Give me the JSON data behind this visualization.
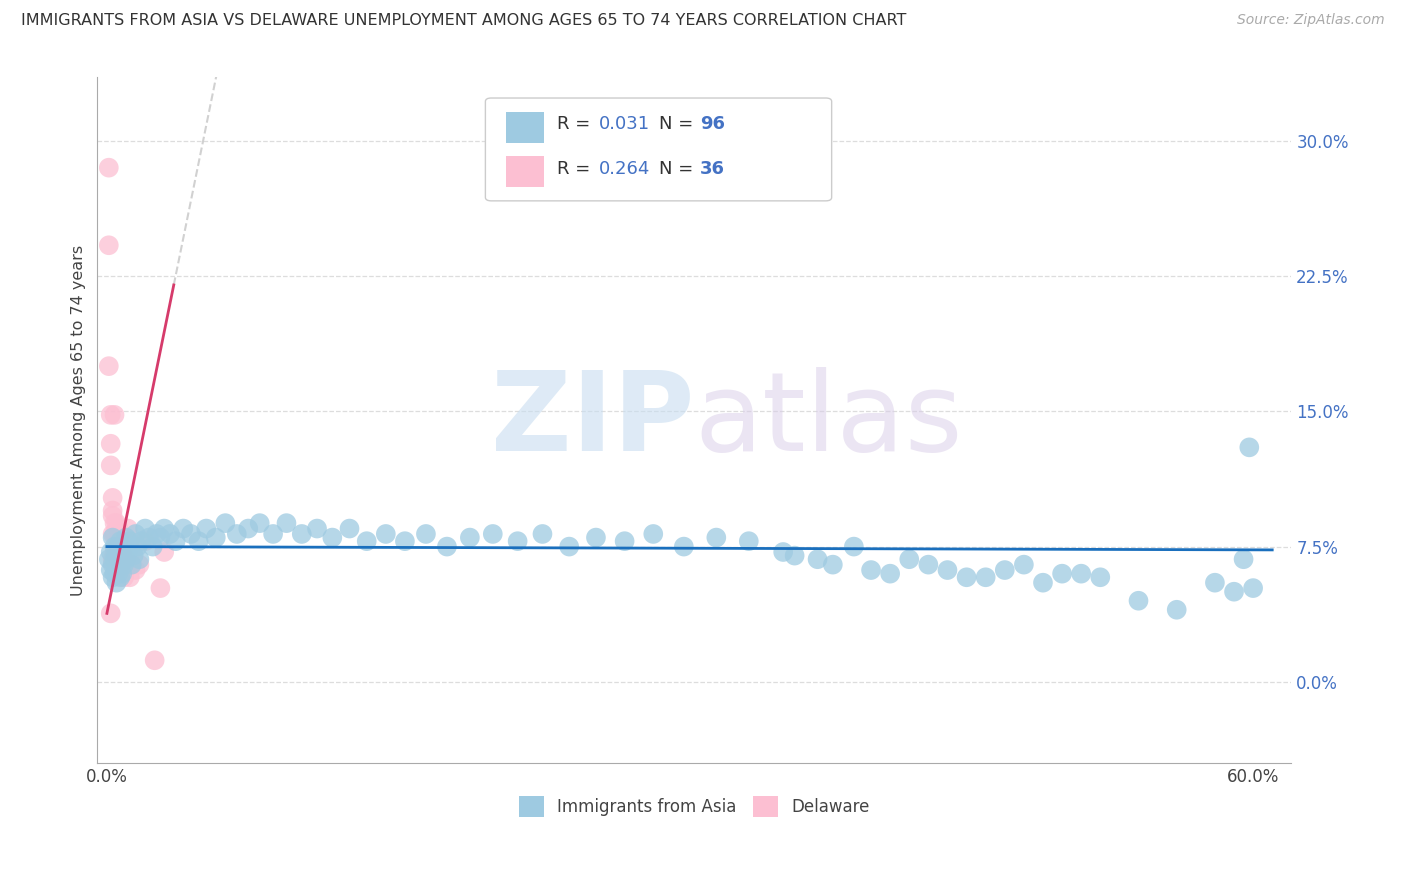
{
  "title": "IMMIGRANTS FROM ASIA VS DELAWARE UNEMPLOYMENT AMONG AGES 65 TO 74 YEARS CORRELATION CHART",
  "source": "Source: ZipAtlas.com",
  "ylabel": "Unemployment Among Ages 65 to 74 years",
  "xlabel_blue": "Immigrants from Asia",
  "xlabel_pink": "Delaware",
  "xlim": [
    -0.005,
    0.62
  ],
  "ylim": [
    -0.045,
    0.335
  ],
  "yticks": [
    0.0,
    0.075,
    0.15,
    0.225,
    0.3
  ],
  "ytick_labels": [
    "0.0%",
    "7.5%",
    "15.0%",
    "22.5%",
    "30.0%"
  ],
  "xtick_positions": [
    0.0,
    0.6
  ],
  "xtick_labels": [
    "0.0%",
    "60.0%"
  ],
  "blue_color": "#9ecae1",
  "pink_color": "#fcbfd2",
  "blue_line_color": "#1a6fbd",
  "pink_line_color": "#d63b6b",
  "trend_line_color_dashed": "#cccccc",
  "R_blue": 0.031,
  "N_blue": 96,
  "R_pink": 0.264,
  "N_pink": 36,
  "background_color": "#ffffff",
  "grid_color": "#dddddd",
  "blue_scatter_x": [
    0.001,
    0.002,
    0.002,
    0.003,
    0.003,
    0.003,
    0.004,
    0.004,
    0.004,
    0.005,
    0.005,
    0.005,
    0.006,
    0.006,
    0.006,
    0.007,
    0.007,
    0.007,
    0.008,
    0.008,
    0.009,
    0.009,
    0.01,
    0.01,
    0.011,
    0.012,
    0.013,
    0.014,
    0.015,
    0.016,
    0.017,
    0.018,
    0.02,
    0.022,
    0.024,
    0.026,
    0.028,
    0.03,
    0.033,
    0.036,
    0.04,
    0.044,
    0.048,
    0.052,
    0.057,
    0.062,
    0.068,
    0.074,
    0.08,
    0.087,
    0.094,
    0.102,
    0.11,
    0.118,
    0.127,
    0.136,
    0.146,
    0.156,
    0.167,
    0.178,
    0.19,
    0.202,
    0.215,
    0.228,
    0.242,
    0.256,
    0.271,
    0.286,
    0.302,
    0.319,
    0.336,
    0.354,
    0.372,
    0.391,
    0.41,
    0.43,
    0.45,
    0.47,
    0.49,
    0.51,
    0.36,
    0.38,
    0.4,
    0.42,
    0.44,
    0.46,
    0.48,
    0.5,
    0.52,
    0.54,
    0.56,
    0.58,
    0.595,
    0.598,
    0.6,
    0.59
  ],
  "blue_scatter_y": [
    0.068,
    0.072,
    0.062,
    0.08,
    0.065,
    0.058,
    0.075,
    0.068,
    0.06,
    0.07,
    0.062,
    0.055,
    0.075,
    0.068,
    0.06,
    0.078,
    0.065,
    0.058,
    0.072,
    0.06,
    0.075,
    0.065,
    0.08,
    0.068,
    0.072,
    0.078,
    0.065,
    0.07,
    0.082,
    0.075,
    0.068,
    0.078,
    0.085,
    0.08,
    0.075,
    0.082,
    0.08,
    0.085,
    0.082,
    0.078,
    0.085,
    0.082,
    0.078,
    0.085,
    0.08,
    0.088,
    0.082,
    0.085,
    0.088,
    0.082,
    0.088,
    0.082,
    0.085,
    0.08,
    0.085,
    0.078,
    0.082,
    0.078,
    0.082,
    0.075,
    0.08,
    0.082,
    0.078,
    0.082,
    0.075,
    0.08,
    0.078,
    0.082,
    0.075,
    0.08,
    0.078,
    0.072,
    0.068,
    0.075,
    0.06,
    0.065,
    0.058,
    0.062,
    0.055,
    0.06,
    0.07,
    0.065,
    0.062,
    0.068,
    0.062,
    0.058,
    0.065,
    0.06,
    0.058,
    0.045,
    0.04,
    0.055,
    0.068,
    0.13,
    0.052,
    0.05
  ],
  "pink_scatter_x": [
    0.001,
    0.001,
    0.001,
    0.002,
    0.002,
    0.002,
    0.002,
    0.003,
    0.003,
    0.003,
    0.003,
    0.003,
    0.004,
    0.004,
    0.004,
    0.004,
    0.005,
    0.005,
    0.005,
    0.006,
    0.006,
    0.007,
    0.007,
    0.008,
    0.008,
    0.009,
    0.01,
    0.011,
    0.012,
    0.013,
    0.015,
    0.017,
    0.02,
    0.025,
    0.028,
    0.03
  ],
  "pink_scatter_y": [
    0.285,
    0.242,
    0.175,
    0.148,
    0.132,
    0.12,
    0.038,
    0.102,
    0.092,
    0.082,
    0.095,
    0.068,
    0.088,
    0.082,
    0.072,
    0.148,
    0.088,
    0.075,
    0.07,
    0.085,
    0.078,
    0.08,
    0.065,
    0.072,
    0.065,
    0.058,
    0.068,
    0.085,
    0.058,
    0.065,
    0.062,
    0.065,
    0.078,
    0.012,
    0.052,
    0.072
  ],
  "pink_line_x_start": 0.0,
  "pink_line_x_solid_end": 0.035,
  "pink_line_x_dash_end": 0.48,
  "pink_line_y_start": 0.038,
  "pink_line_slope": 5.2,
  "blue_line_y_start": 0.075,
  "blue_line_slope": -0.003
}
